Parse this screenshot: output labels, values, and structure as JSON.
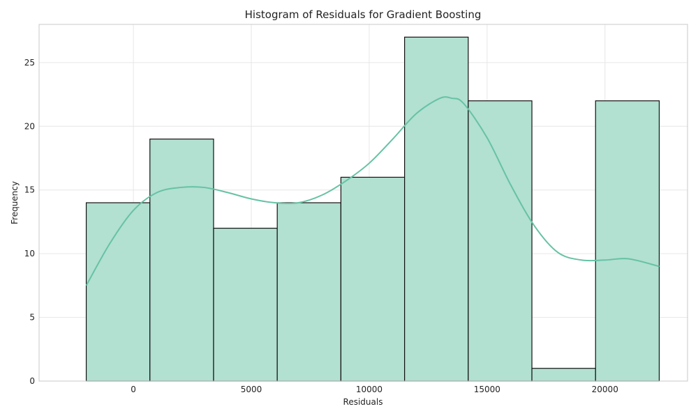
{
  "chart_data": {
    "type": "bar",
    "title": "Histogram of Residuals for Gradient Boosting",
    "xlabel": "Residuals",
    "ylabel": "Frequency",
    "xlim": [
      -4000,
      23500
    ],
    "ylim": [
      0,
      28
    ],
    "xticks": [
      0,
      5000,
      10000,
      15000,
      20000
    ],
    "yticks": [
      0,
      5,
      10,
      15,
      20,
      25
    ],
    "grid": true,
    "bins": [
      {
        "x0": -2000,
        "x1": 700,
        "count": 14
      },
      {
        "x0": 700,
        "x1": 3400,
        "count": 19
      },
      {
        "x0": 3400,
        "x1": 6100,
        "count": 12
      },
      {
        "x0": 6100,
        "x1": 8800,
        "count": 14
      },
      {
        "x0": 8800,
        "x1": 11500,
        "count": 16
      },
      {
        "x0": 11500,
        "x1": 14200,
        "count": 27
      },
      {
        "x0": 14200,
        "x1": 16900,
        "count": 22
      },
      {
        "x0": 16900,
        "x1": 19600,
        "count": 1
      },
      {
        "x0": 19600,
        "x1": 22300,
        "count": 22
      }
    ],
    "kde": {
      "x": [
        -2000,
        -1000,
        0,
        1000,
        2000,
        3000,
        4000,
        5000,
        6000,
        7000,
        8000,
        9000,
        10000,
        11000,
        12000,
        13000,
        13500,
        14000,
        15000,
        16000,
        17000,
        18000,
        19000,
        20000,
        21000,
        22300
      ],
      "y": [
        7.5,
        10.8,
        13.4,
        14.8,
        15.2,
        15.2,
        14.8,
        14.3,
        14.0,
        14.0,
        14.6,
        15.7,
        17.1,
        19.0,
        21.0,
        22.2,
        22.2,
        21.8,
        19.1,
        15.4,
        12.2,
        10.1,
        9.5,
        9.5,
        9.6,
        9.0
      ]
    },
    "colors": {
      "bar_fill": "#b2e0d1",
      "bar_edge": "#111111",
      "kde_line": "#66c2a5"
    }
  }
}
